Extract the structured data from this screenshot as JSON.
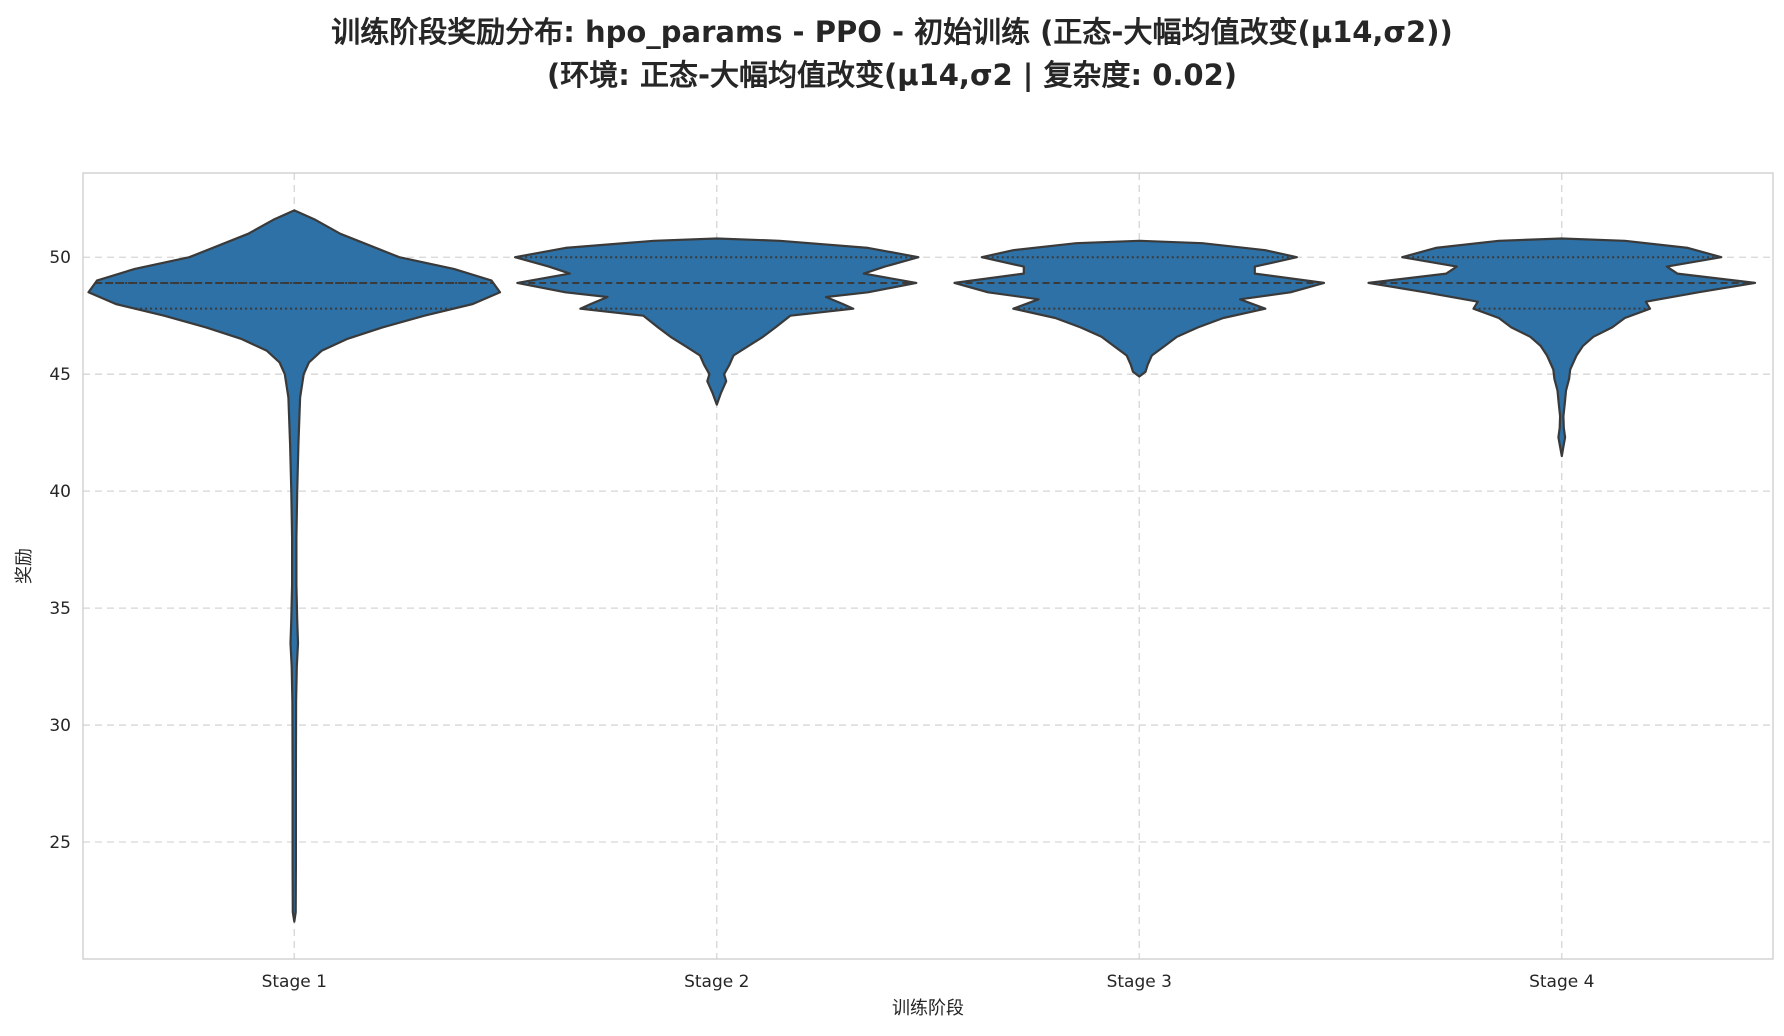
{
  "chart_data": {
    "type": "violin",
    "title_lines": [
      "训练阶段奖励分布: hpo_params - PPO - 初始训练 (正态-大幅均值改变(μ14,σ2))",
      "(环境: 正态-大幅均值改变(μ14,σ2 | 复杂度: 0.02)"
    ],
    "xlabel": "训练阶段",
    "ylabel": "奖励",
    "categories": [
      "Stage 1",
      "Stage 2",
      "Stage 3",
      "Stage 4"
    ],
    "ylim": [
      20,
      53.6
    ],
    "yticks": [
      25,
      30,
      35,
      40,
      45,
      50
    ],
    "grid": true,
    "color": "#2e71a6",
    "series": [
      {
        "category": "Stage 1",
        "min": 21.6,
        "max": 52.0,
        "q1": 47.8,
        "median": 48.9,
        "q3": 48.9,
        "density": [
          [
            52.0,
            0.0
          ],
          [
            51.6,
            0.1
          ],
          [
            51.0,
            0.22
          ],
          [
            50.0,
            0.5
          ],
          [
            49.5,
            0.76
          ],
          [
            49.0,
            0.94
          ],
          [
            48.5,
            0.98
          ],
          [
            48.0,
            0.85
          ],
          [
            47.5,
            0.62
          ],
          [
            47.0,
            0.42
          ],
          [
            46.5,
            0.25
          ],
          [
            46.0,
            0.13
          ],
          [
            45.5,
            0.07
          ],
          [
            45.0,
            0.045
          ],
          [
            44.0,
            0.028
          ],
          [
            42.0,
            0.02
          ],
          [
            40.0,
            0.014
          ],
          [
            38.0,
            0.01
          ],
          [
            36.0,
            0.01
          ],
          [
            34.5,
            0.014
          ],
          [
            33.5,
            0.018
          ],
          [
            32.5,
            0.012
          ],
          [
            31.0,
            0.009
          ],
          [
            28.0,
            0.008
          ],
          [
            24.0,
            0.008
          ],
          [
            22.0,
            0.007
          ],
          [
            21.6,
            0.0
          ]
        ]
      },
      {
        "category": "Stage 2",
        "min": 43.7,
        "max": 50.8,
        "q1": 47.8,
        "median": 48.9,
        "q3": 50.0,
        "density": [
          [
            50.8,
            0.0
          ],
          [
            50.7,
            0.3
          ],
          [
            50.4,
            0.72
          ],
          [
            50.0,
            0.96
          ],
          [
            49.6,
            0.8
          ],
          [
            49.3,
            0.7
          ],
          [
            48.9,
            0.95
          ],
          [
            48.5,
            0.72
          ],
          [
            48.3,
            0.52
          ],
          [
            48.0,
            0.6
          ],
          [
            47.8,
            0.65
          ],
          [
            47.5,
            0.35
          ],
          [
            47.0,
            0.28
          ],
          [
            46.6,
            0.22
          ],
          [
            46.2,
            0.15
          ],
          [
            45.8,
            0.08
          ],
          [
            45.4,
            0.06
          ],
          [
            45.0,
            0.035
          ],
          [
            44.7,
            0.045
          ],
          [
            44.2,
            0.02
          ],
          [
            43.7,
            0.0
          ]
        ]
      },
      {
        "category": "Stage 3",
        "min": 44.9,
        "max": 50.7,
        "q1": 47.8,
        "median": 48.9,
        "q3": 50.0,
        "density": [
          [
            50.7,
            0.0
          ],
          [
            50.6,
            0.3
          ],
          [
            50.3,
            0.6
          ],
          [
            50.0,
            0.75
          ],
          [
            49.6,
            0.55
          ],
          [
            49.3,
            0.55
          ],
          [
            48.9,
            0.88
          ],
          [
            48.5,
            0.72
          ],
          [
            48.2,
            0.48
          ],
          [
            47.8,
            0.6
          ],
          [
            47.4,
            0.4
          ],
          [
            47.0,
            0.28
          ],
          [
            46.6,
            0.18
          ],
          [
            46.2,
            0.12
          ],
          [
            45.8,
            0.06
          ],
          [
            45.4,
            0.04
          ],
          [
            45.1,
            0.03
          ],
          [
            44.9,
            0.0
          ]
        ]
      },
      {
        "category": "Stage 4",
        "min": 41.5,
        "max": 50.8,
        "q1": 47.8,
        "median": 48.9,
        "q3": 50.0,
        "density": [
          [
            50.8,
            0.0
          ],
          [
            50.7,
            0.3
          ],
          [
            50.4,
            0.6
          ],
          [
            50.0,
            0.76
          ],
          [
            49.6,
            0.5
          ],
          [
            49.3,
            0.55
          ],
          [
            48.9,
            0.92
          ],
          [
            48.5,
            0.65
          ],
          [
            48.1,
            0.4
          ],
          [
            47.8,
            0.42
          ],
          [
            47.4,
            0.3
          ],
          [
            47.0,
            0.24
          ],
          [
            46.6,
            0.15
          ],
          [
            46.2,
            0.1
          ],
          [
            45.8,
            0.07
          ],
          [
            45.2,
            0.04
          ],
          [
            44.8,
            0.035
          ],
          [
            44.3,
            0.02
          ],
          [
            43.8,
            0.015
          ],
          [
            43.2,
            0.008
          ],
          [
            42.7,
            0.01
          ],
          [
            42.3,
            0.016
          ],
          [
            41.9,
            0.008
          ],
          [
            41.5,
            0.0
          ]
        ]
      }
    ]
  }
}
